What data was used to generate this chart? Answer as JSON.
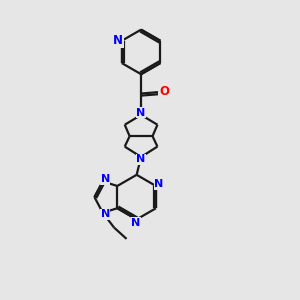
{
  "bg_color": "#e6e6e6",
  "bond_color": "#1a1a1a",
  "N_color": "#0000ff",
  "O_color": "#ff0000",
  "line_width": 1.6,
  "font_size": 8.5,
  "fig_size": [
    3.0,
    3.0
  ],
  "dpi": 100,
  "xlim": [
    0,
    10
  ],
  "ylim": [
    0,
    10
  ]
}
